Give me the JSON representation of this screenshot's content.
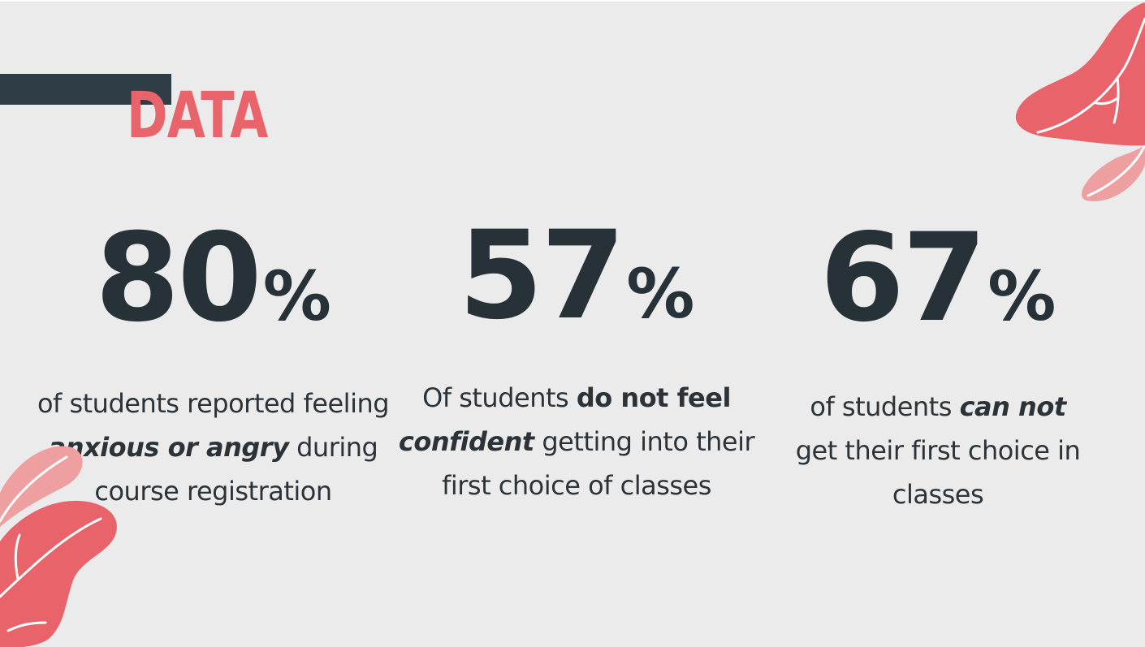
{
  "slide": {
    "title": "DATA",
    "accent_color": "#e8636a",
    "dark_color": "#273238",
    "stats": [
      {
        "value": "80",
        "unit": "%",
        "desc_pre": "of students reported feeling",
        "desc_bold": "anxious or angry",
        "desc_post": "during course registration"
      },
      {
        "value": "57",
        "unit": "%",
        "desc_pre": "Of students",
        "desc_bold": "do not feel",
        "desc_bold2": "confident",
        "desc_post": "getting into their first choice of classes"
      },
      {
        "value": "67",
        "unit": "%",
        "desc_pre": "of students",
        "desc_bold": "can not",
        "desc_post": "get their first choice in classes"
      }
    ],
    "decorations": [
      "leaf-icon",
      "leaf-icon"
    ]
  }
}
